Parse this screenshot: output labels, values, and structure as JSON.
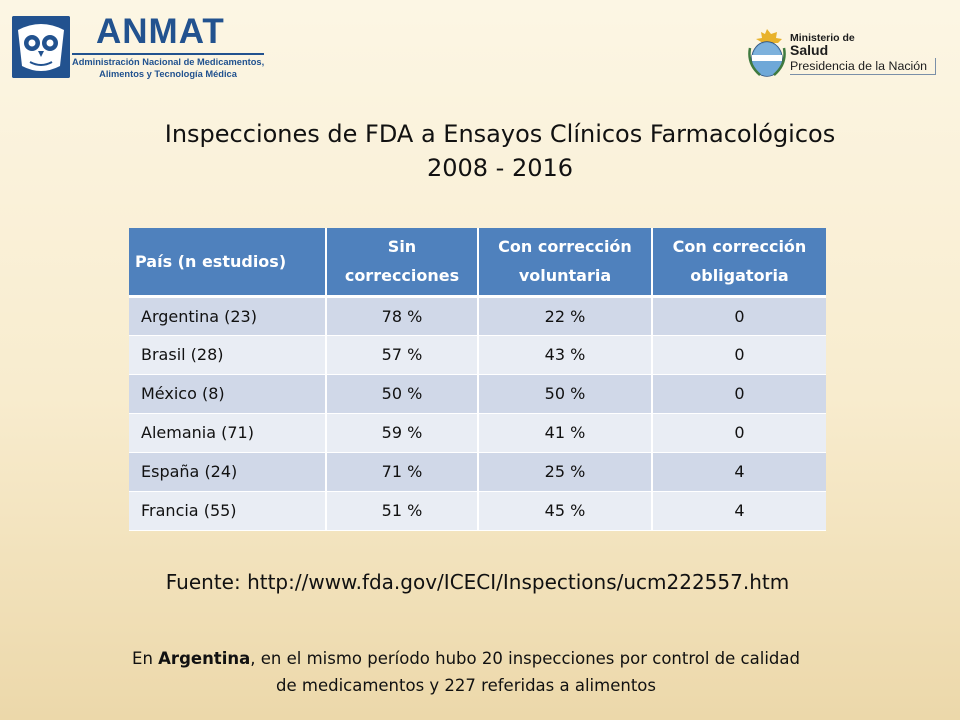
{
  "header": {
    "anmat_logo": {
      "name": "ANMAT",
      "subtitle_line1": "Administración Nacional de Medicamentos,",
      "subtitle_line2": "Alimentos y Tecnología Médica"
    },
    "ministerio_logo": {
      "line1": "Ministerio de",
      "line2": "Salud",
      "line3": "Presidencia de la Nación"
    }
  },
  "title": {
    "line1": "Inspecciones de FDA a Ensayos Clínicos Farmacológicos",
    "line2": "2008 - 2016"
  },
  "table": {
    "headers": [
      "País (n estudios)",
      "Sin correcciones",
      "Con corrección voluntaria",
      "Con corrección obligatoria"
    ],
    "rows": [
      [
        "Argentina (23)",
        "78 %",
        "22 %",
        "0"
      ],
      [
        "Brasil (28)",
        "57 %",
        "43 %",
        "0"
      ],
      [
        "México (8)",
        "50 %",
        "50 %",
        "0"
      ],
      [
        "Alemania (71)",
        "59 %",
        "41 %",
        "0"
      ],
      [
        "España (24)",
        "71 %",
        "25 %",
        "4"
      ],
      [
        "Francia (55)",
        "51 %",
        "45 %",
        "4"
      ]
    ]
  },
  "source": "Fuente: http://www.fda.gov/ICECI/Inspections/ucm222557.htm",
  "note": {
    "prefix": "En ",
    "bold": "Argentina",
    "rest_line1": ", en el mismo período hubo 20 inspecciones por control de calidad",
    "line2": "de medicamentos y 227 referidas a alimentos"
  },
  "colors": {
    "header_bg": "#4f81bd",
    "row_odd": "#d0d8e8",
    "row_even": "#e9edf4",
    "anmat_blue": "#22528f"
  }
}
